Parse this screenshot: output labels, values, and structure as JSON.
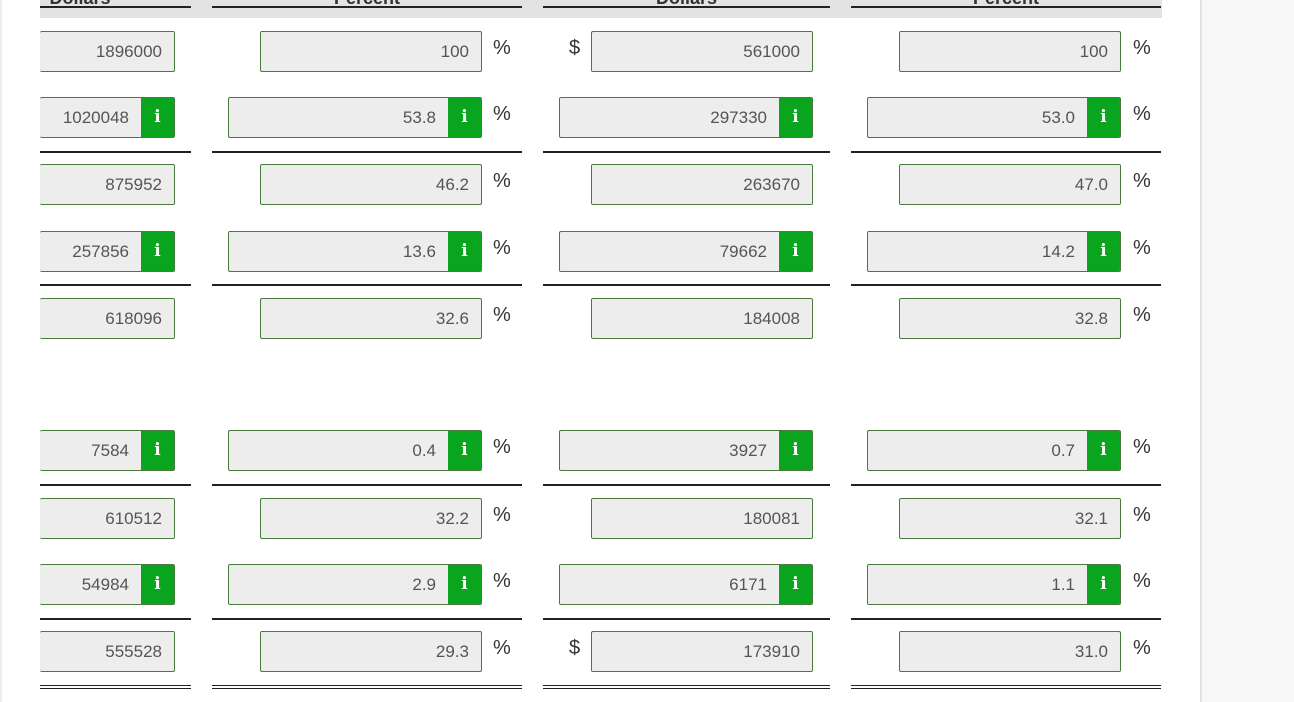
{
  "headers": [
    "Dollars",
    "Percent",
    "Dollars",
    "Percent"
  ],
  "percent_symbol": "%",
  "dollar_symbol": "$",
  "rows": [
    {
      "c1": "1896000",
      "c2": "100",
      "c3": "561000",
      "c4": "100",
      "info": false,
      "dollar": true
    },
    {
      "c1": "1020048",
      "c2": "53.8",
      "c3": "297330",
      "c4": "53.0",
      "info": true,
      "dollar": false
    },
    {
      "c1": "875952",
      "c2": "46.2",
      "c3": "263670",
      "c4": "47.0",
      "info": false,
      "dollar": false
    },
    {
      "c1": "257856",
      "c2": "13.6",
      "c3": "79662",
      "c4": "14.2",
      "info": true,
      "dollar": false
    },
    {
      "c1": "618096",
      "c2": "32.6",
      "c3": "184008",
      "c4": "32.8",
      "info": false,
      "dollar": false
    },
    {
      "c1": "7584",
      "c2": "0.4",
      "c3": "3927",
      "c4": "0.7",
      "info": true,
      "dollar": false
    },
    {
      "c1": "610512",
      "c2": "32.2",
      "c3": "180081",
      "c4": "32.1",
      "info": false,
      "dollar": false
    },
    {
      "c1": "54984",
      "c2": "2.9",
      "c3": "6171",
      "c4": "1.1",
      "info": true,
      "dollar": false
    },
    {
      "c1": "555528",
      "c2": "29.3",
      "c3": "173910",
      "c4": "31.0",
      "info": false,
      "dollar": true
    }
  ],
  "info_icon": "i",
  "colors": {
    "accent": "#0aa51e",
    "border": "#4a7a3e",
    "field": "#ededed"
  }
}
